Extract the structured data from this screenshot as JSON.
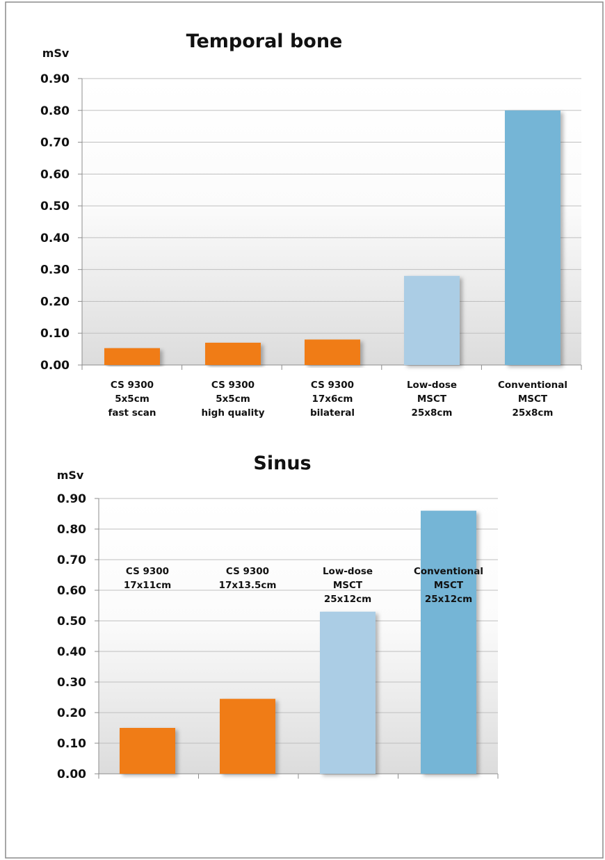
{
  "colors": {
    "cs9300": "#f07c12",
    "low_dose": "#abcde5",
    "conventional": "#74b5d6"
  },
  "chart_data": [
    {
      "type": "bar",
      "title": "Temporal bone",
      "ylabel": "mSv",
      "ylim": [
        0,
        0.9
      ],
      "yticks": [
        "0.00",
        "0.10",
        "0.20",
        "0.30",
        "0.40",
        "0.50",
        "0.60",
        "0.70",
        "0.80",
        "0.90"
      ],
      "categories": [
        [
          "CS 9300",
          "5x5cm",
          "fast scan"
        ],
        [
          "CS 9300",
          "5x5cm",
          "high quality"
        ],
        [
          "CS 9300",
          "17x6cm",
          "bilateral"
        ],
        [
          "Low-dose",
          "MSCT",
          "25x8cm"
        ],
        [
          "Conventional",
          "MSCT",
          "25x8cm"
        ]
      ],
      "values": [
        0.053,
        0.07,
        0.08,
        0.28,
        0.8
      ],
      "bar_colors": [
        "#f07c12",
        "#f07c12",
        "#f07c12",
        "#abcde5",
        "#74b5d6"
      ],
      "grid": true,
      "legend": "none"
    },
    {
      "type": "bar",
      "title": "Sinus",
      "ylabel": "mSv",
      "ylim": [
        0,
        0.9
      ],
      "yticks": [
        "0.00",
        "0.10",
        "0.20",
        "0.30",
        "0.40",
        "0.50",
        "0.60",
        "0.70",
        "0.80",
        "0.90"
      ],
      "categories": [
        [
          "CS 9300",
          "17x11cm"
        ],
        [
          "CS 9300",
          "17x13.5cm"
        ],
        [
          "Low-dose",
          "MSCT",
          "25x12cm"
        ],
        [
          "Conventional",
          "MSCT",
          "25x12cm"
        ]
      ],
      "values": [
        0.15,
        0.245,
        0.53,
        0.86
      ],
      "bar_colors": [
        "#f07c12",
        "#f07c12",
        "#abcde5",
        "#74b5d6"
      ],
      "grid": true,
      "legend": "none"
    }
  ]
}
